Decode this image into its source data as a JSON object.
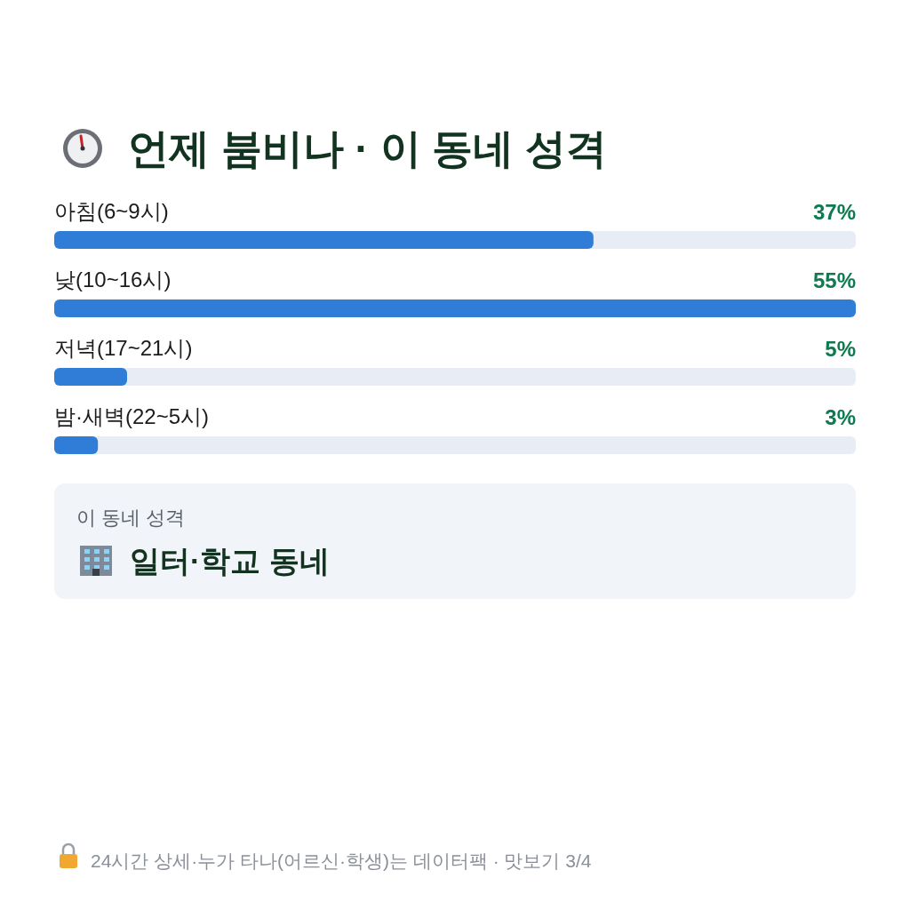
{
  "chart_data": {
    "type": "bar",
    "orientation": "horizontal",
    "title": "언제 붐비나 · 이 동네 성격",
    "categories": [
      "아침(6~9시)",
      "낮(10~16시)",
      "저녁(17~21시)",
      "밤·새벽(22~5시)"
    ],
    "values": [
      37,
      55,
      5,
      3
    ],
    "value_labels": [
      "37%",
      "55%",
      "5%",
      "3%"
    ],
    "color": "#2f7dd6",
    "annotations": [
      "이 동네 성격",
      "일터·학교 동네",
      "24시간 상세·누가 타나(어르신·학생)는 데이터팩 · 맛보기 3/4"
    ]
  }
}
